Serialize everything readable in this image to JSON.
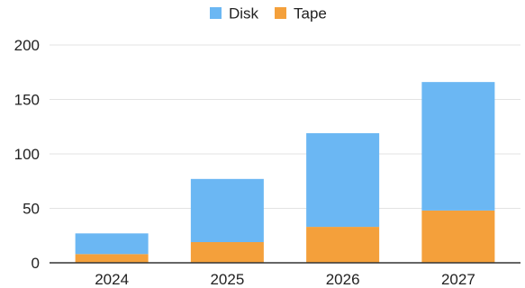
{
  "chart_data": {
    "type": "bar",
    "stacked": true,
    "categories": [
      "2024",
      "2025",
      "2026",
      "2027"
    ],
    "series": [
      {
        "name": "Tape",
        "color": "#f4a03b",
        "values": [
          8,
          19,
          33,
          48
        ]
      },
      {
        "name": "Disk",
        "color": "#6bb7f3",
        "values": [
          19,
          58,
          86,
          118
        ]
      }
    ],
    "ylim": [
      0,
      200
    ],
    "yticks": [
      0,
      50,
      100,
      150,
      200
    ],
    "grid": true,
    "legend_position": "top-center",
    "legend": [
      {
        "label": "Disk",
        "color": "#6bb7f3"
      },
      {
        "label": "Tape",
        "color": "#f4a03b"
      }
    ]
  }
}
